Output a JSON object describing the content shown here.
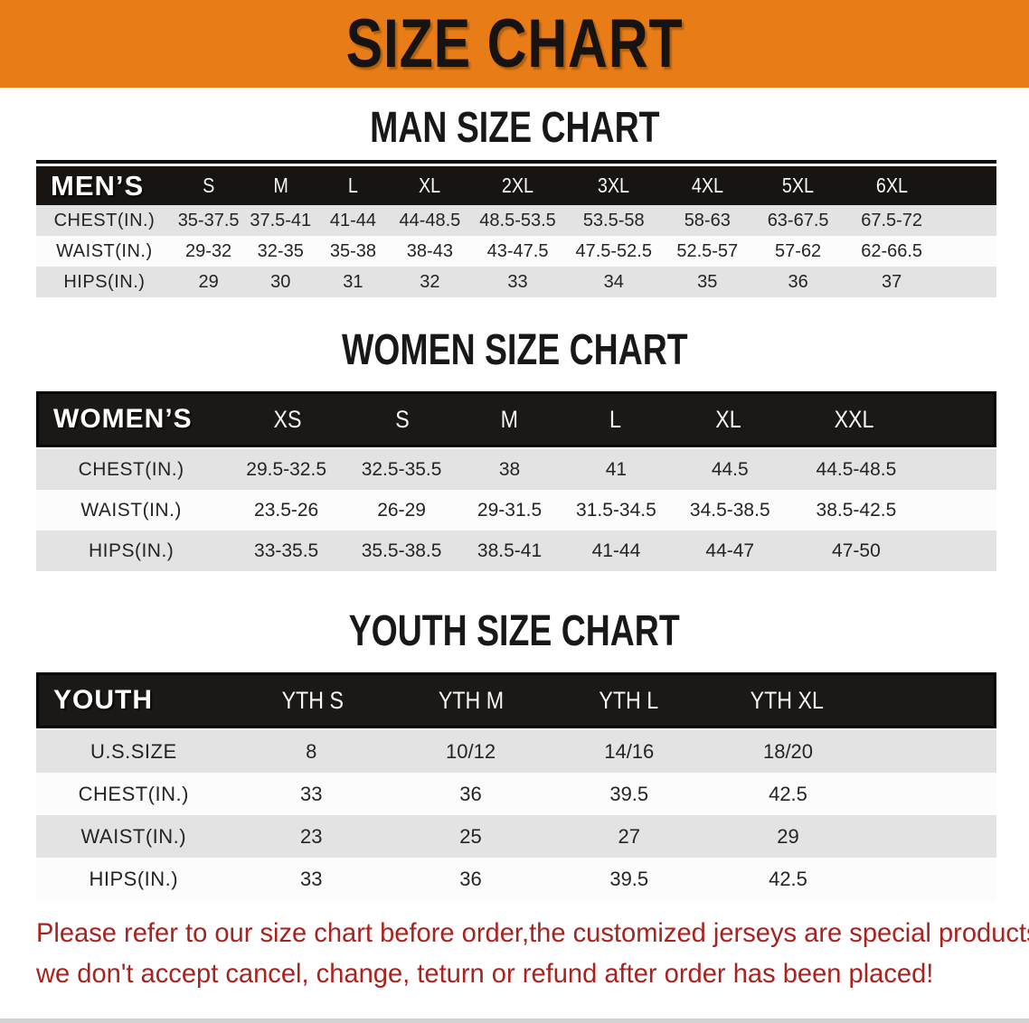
{
  "banner": {
    "title": "SIZE CHART"
  },
  "colors": {
    "banner_bg": "#E87D17",
    "banner_text": "#161310",
    "header_bar": "#171412",
    "stripe_gray": "#E3E3E4",
    "stripe_white": "#FCFCFC",
    "footer_red": "#A82320"
  },
  "sections": [
    {
      "heading": "MAN SIZE CHART",
      "table": {
        "header_label": "MEN’S",
        "columns": [
          "S",
          "M",
          "L",
          "XL",
          "2XL",
          "3XL",
          "4XL",
          "5XL",
          "6XL"
        ],
        "rows": [
          {
            "label": "CHEST(IN.)",
            "values": [
              "35-37.5",
              "37.5-41",
              "41-44",
              "44-48.5",
              "48.5-53.5",
              "53.5-58",
              "58-63",
              "63-67.5",
              "67.5-72"
            ]
          },
          {
            "label": "WAIST(IN.)",
            "values": [
              "29-32",
              "32-35",
              "35-38",
              "38-43",
              "43-47.5",
              "47.5-52.5",
              "52.5-57",
              "57-62",
              "62-66.5"
            ]
          },
          {
            "label": "HIPS(IN.)",
            "values": [
              "29",
              "30",
              "31",
              "32",
              "33",
              "34",
              "35",
              "36",
              "37"
            ]
          }
        ]
      }
    },
    {
      "heading": "WOMEN SIZE CHART",
      "table": {
        "header_label": "WOMEN’S",
        "columns": [
          "XS",
          "S",
          "M",
          "L",
          "XL",
          "XXL"
        ],
        "rows": [
          {
            "label": "CHEST(IN.)",
            "values": [
              "29.5-32.5",
              "32.5-35.5",
              "38",
              "41",
              "44.5",
              "44.5-48.5"
            ]
          },
          {
            "label": "WAIST(IN.)",
            "values": [
              "23.5-26",
              "26-29",
              "29-31.5",
              "31.5-34.5",
              "34.5-38.5",
              "38.5-42.5"
            ]
          },
          {
            "label": "HIPS(IN.)",
            "values": [
              "33-35.5",
              "35.5-38.5",
              "38.5-41",
              "41-44",
              "44-47",
              "47-50"
            ]
          }
        ]
      }
    },
    {
      "heading": "YOUTH SIZE CHART",
      "table": {
        "header_label": "YOUTH",
        "columns": [
          "YTH S",
          "YTH M",
          "YTH L",
          "YTH XL"
        ],
        "rows": [
          {
            "label": "U.S.SIZE",
            "values": [
              "8",
              "10/12",
              "14/16",
              "18/20"
            ]
          },
          {
            "label": "CHEST(IN.)",
            "values": [
              "33",
              "36",
              "39.5",
              "42.5"
            ]
          },
          {
            "label": "WAIST(IN.)",
            "values": [
              "23",
              "25",
              "27",
              "29"
            ]
          },
          {
            "label": "HIPS(IN.)",
            "values": [
              "33",
              "36",
              "39.5",
              "42.5"
            ]
          }
        ]
      }
    }
  ],
  "footer": {
    "line1": "Please refer to our size chart before order,the customized jerseys are special products,",
    "line2": "we don't accept cancel, change, teturn or refund after order has been placed!"
  }
}
